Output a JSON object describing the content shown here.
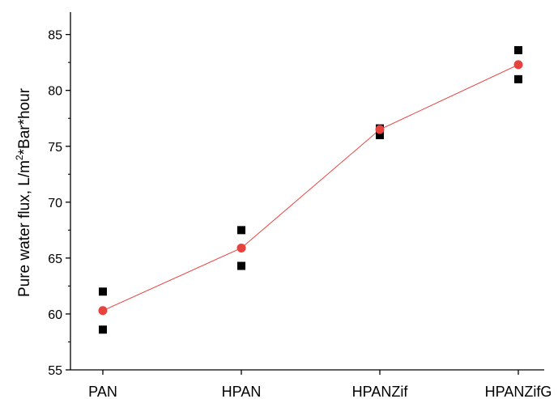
{
  "chart_data": {
    "type": "scatter",
    "title": "",
    "xlabel": "",
    "ylabel": "Pure water flux, L/m",
    "ylabel_superscript": "2",
    "ylabel_suffix": "*Bar*hour",
    "categories": [
      "PAN",
      "HPAN",
      "HPANZif",
      "HPANZifG"
    ],
    "ylim": [
      55,
      87
    ],
    "yticks": [
      55,
      60,
      65,
      70,
      75,
      80,
      85
    ],
    "grid": false,
    "legend": "none",
    "series": [
      {
        "marker": "square",
        "color": "#000000",
        "points": [
          {
            "category": "PAN",
            "y": 62.0
          },
          {
            "category": "PAN",
            "y": 58.6
          },
          {
            "category": "HPAN",
            "y": 67.5
          },
          {
            "category": "HPAN",
            "y": 64.3
          },
          {
            "category": "HPANZif",
            "y": 76.6
          },
          {
            "category": "HPANZif",
            "y": 76.0
          },
          {
            "category": "HPANZifG",
            "y": 83.6
          },
          {
            "category": "HPANZifG",
            "y": 81.0
          }
        ]
      },
      {
        "marker": "circle",
        "color": "#e8423f",
        "line": true,
        "values": [
          60.3,
          65.9,
          76.5,
          82.3
        ]
      }
    ]
  }
}
